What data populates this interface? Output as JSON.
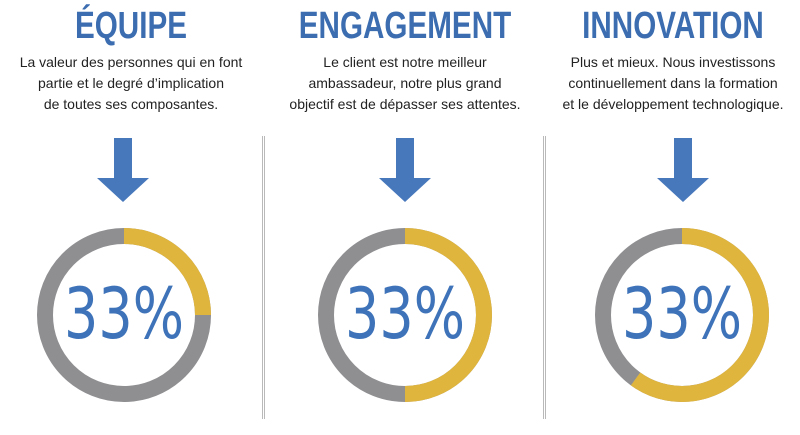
{
  "colors": {
    "heading": "#3b6db0",
    "arrow": "#4778bc",
    "ring_track": "#8f8f92",
    "ring_fill": "#e0b53e",
    "percent_text": "#3e73b9",
    "divider": "#b9b9b9"
  },
  "sections": [
    {
      "title": "ÉQUIPE",
      "lines": [
        "La valeur des personnes qui en font",
        "partie et le degré d’implication",
        "de toutes ses composantes."
      ],
      "percent_label": "33%",
      "percent_value": 33
    },
    {
      "title": "ENGAGEMENT",
      "lines": [
        "Le client est notre meilleur",
        "ambassadeur, notre plus grand",
        "objectif est de dépasser ses attentes."
      ],
      "percent_label": "33%",
      "percent_value": 33
    },
    {
      "title": "INNOVATION",
      "lines": [
        "Plus et mieux. Nous investissons",
        "continuellement dans la formation",
        "et le développement technologique."
      ],
      "percent_label": "33%",
      "percent_value": 33
    }
  ]
}
